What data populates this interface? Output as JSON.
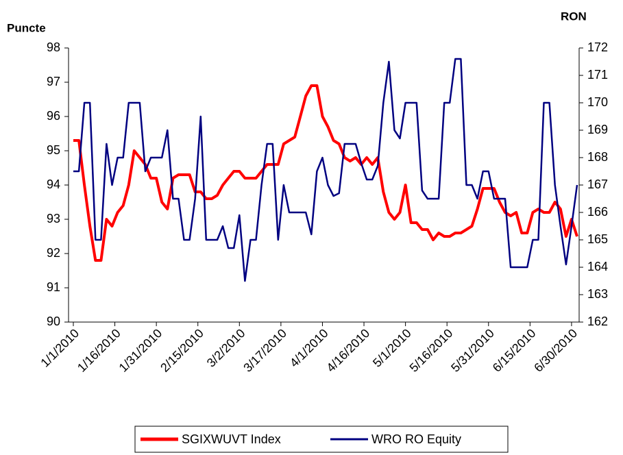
{
  "chart_data": {
    "type": "line",
    "ylabel": "Puncte",
    "y2label": "RON",
    "x": [
      "1/1/2010",
      "1/3/2010",
      "1/5/2010",
      "1/7/2010",
      "1/9/2010",
      "1/11/2010",
      "1/13/2010",
      "1/15/2010",
      "1/17/2010",
      "1/19/2010",
      "1/21/2010",
      "1/23/2010",
      "1/25/2010",
      "1/27/2010",
      "1/29/2010",
      "1/31/2010",
      "2/2/2010",
      "2/4/2010",
      "2/6/2010",
      "2/8/2010",
      "2/10/2010",
      "2/12/2010",
      "2/14/2010",
      "2/16/2010",
      "2/18/2010",
      "2/20/2010",
      "2/22/2010",
      "2/24/2010",
      "2/26/2010",
      "2/28/2010",
      "3/2/2010",
      "3/4/2010",
      "3/6/2010",
      "3/8/2010",
      "3/10/2010",
      "3/12/2010",
      "3/14/2010",
      "3/16/2010",
      "3/18/2010",
      "3/20/2010",
      "3/22/2010",
      "3/24/2010",
      "3/26/2010",
      "3/28/2010",
      "3/30/2010",
      "4/1/2010",
      "4/3/2010",
      "4/5/2010",
      "4/7/2010",
      "4/9/2010",
      "4/11/2010",
      "4/13/2010",
      "4/15/2010",
      "4/17/2010",
      "4/19/2010",
      "4/21/2010",
      "4/23/2010",
      "4/25/2010",
      "4/27/2010",
      "4/29/2010",
      "5/1/2010",
      "5/3/2010",
      "5/5/2010",
      "5/7/2010",
      "5/9/2010",
      "5/11/2010",
      "5/13/2010",
      "5/15/2010",
      "5/17/2010",
      "5/19/2010",
      "5/21/2010",
      "5/23/2010",
      "5/25/2010",
      "5/27/2010",
      "5/29/2010",
      "5/31/2010",
      "6/2/2010",
      "6/4/2010",
      "6/6/2010",
      "6/8/2010",
      "6/10/2010",
      "6/12/2010",
      "6/14/2010",
      "6/16/2010",
      "6/18/2010",
      "6/20/2010",
      "6/22/2010",
      "6/24/2010",
      "6/26/2010",
      "6/28/2010",
      "6/30/2010",
      "7/2/2010"
    ],
    "series": [
      {
        "name": "SGIXWUVT Index",
        "color": "#ff0000",
        "axis": "y",
        "values": [
          95.3,
          95.3,
          94,
          92.8,
          91.8,
          91.8,
          93,
          92.8,
          93.2,
          93.4,
          94,
          95,
          94.8,
          94.6,
          94.2,
          94.2,
          93.5,
          93.3,
          94.2,
          94.3,
          94.3,
          94.3,
          93.8,
          93.8,
          93.6,
          93.6,
          93.7,
          94,
          94.2,
          94.4,
          94.4,
          94.2,
          94.2,
          94.2,
          94.4,
          94.6,
          94.6,
          94.6,
          95.2,
          95.3,
          95.4,
          96,
          96.6,
          96.9,
          96.9,
          96,
          95.7,
          95.3,
          95.2,
          94.8,
          94.7,
          94.8,
          94.6,
          94.8,
          94.6,
          94.8,
          93.8,
          93.2,
          93,
          93.2,
          94,
          92.9,
          92.9,
          92.7,
          92.7,
          92.4,
          92.6,
          92.5,
          92.5,
          92.6,
          92.6,
          92.7,
          92.8,
          93.3,
          93.9,
          93.9,
          93.9,
          93.5,
          93.2,
          93.1,
          93.2,
          92.6,
          92.6,
          93.2,
          93.3,
          93.2,
          93.2,
          93.5,
          93.3,
          92.5,
          93,
          92.5
        ]
      },
      {
        "name": "WRO RO Equity",
        "color": "#000080",
        "axis": "y2",
        "values": [
          167.5,
          167.5,
          170,
          170,
          165,
          165,
          168.5,
          167,
          168,
          168,
          170,
          170,
          170,
          167.5,
          168,
          168,
          168,
          169,
          166.5,
          166.5,
          165,
          165,
          166.5,
          169.5,
          165,
          165,
          165,
          165.5,
          164.7,
          164.7,
          165.9,
          163.5,
          165,
          165,
          167,
          168.5,
          168.5,
          165,
          167,
          166,
          166,
          166,
          166,
          165.2,
          167.5,
          168,
          167,
          166.6,
          166.7,
          168.5,
          168.5,
          168.5,
          167.8,
          167.2,
          167.2,
          167.7,
          170,
          171.5,
          169,
          168.7,
          170,
          170,
          170,
          166.8,
          166.5,
          166.5,
          166.5,
          170,
          170,
          171.6,
          171.6,
          167,
          167,
          166.5,
          167.5,
          167.5,
          166.5,
          166.5,
          166.5,
          164,
          164,
          164,
          164,
          165,
          165,
          170,
          170,
          167,
          165.5,
          164.1,
          165.5,
          167
        ]
      }
    ],
    "ylim": [
      90,
      98
    ],
    "yticks": [
      90,
      91,
      92,
      93,
      94,
      95,
      96,
      97,
      98
    ],
    "y2lim": [
      162,
      172
    ],
    "y2ticks": [
      162,
      163,
      164,
      165,
      166,
      167,
      168,
      169,
      170,
      171,
      172
    ],
    "xticks": [
      "1/1/2010",
      "1/16/2010",
      "1/31/2010",
      "2/15/2010",
      "3/2/2010",
      "3/17/2010",
      "4/1/2010",
      "4/16/2010",
      "5/1/2010",
      "5/16/2010",
      "5/31/2010",
      "6/15/2010",
      "6/30/2010"
    ],
    "legend": "bottom"
  }
}
